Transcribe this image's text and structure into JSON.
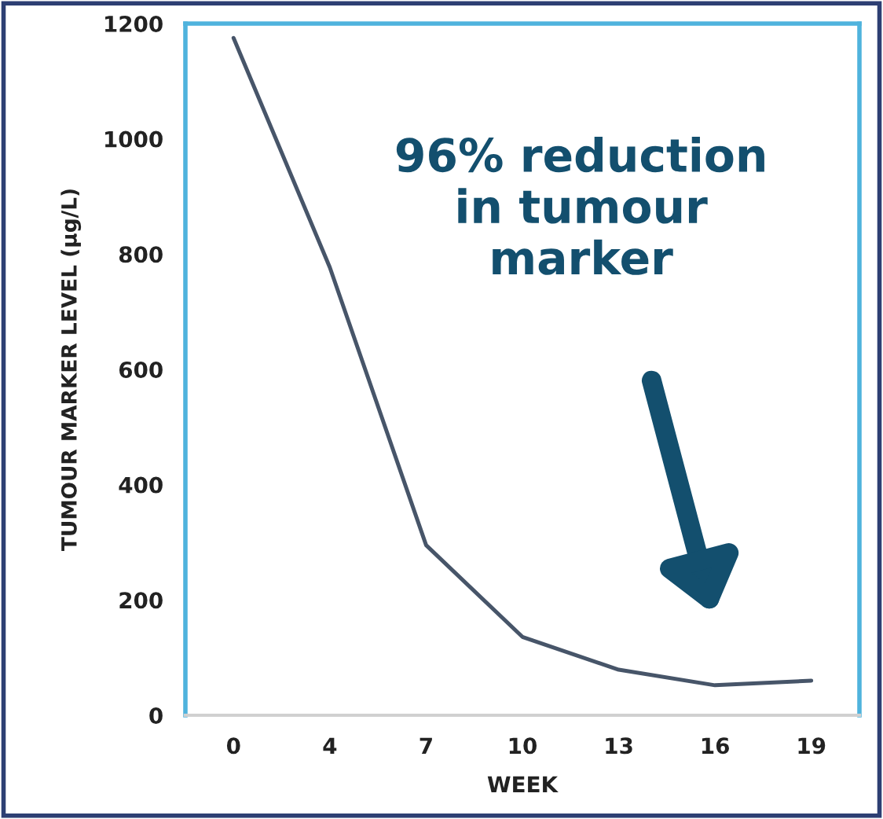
{
  "chart_data": {
    "type": "line",
    "categories": [
      "0",
      "4",
      "7",
      "10",
      "13",
      "16",
      "19"
    ],
    "series": [
      {
        "color": "#475569",
        "values": [
          1175,
          777,
          295,
          136,
          79,
          52,
          60
        ]
      }
    ],
    "xlabel": "WEEK",
    "ylabel": "TUMOUR MARKER LEVEL (μg/L)",
    "ylim": [
      0,
      1200
    ],
    "yticks": [
      0,
      200,
      400,
      600,
      800,
      1000,
      1200
    ],
    "annotations": [
      "96% reduction\nin tumour\nmarker"
    ],
    "grid": false,
    "legend": false,
    "marker": "none",
    "line_style": "solid"
  }
}
